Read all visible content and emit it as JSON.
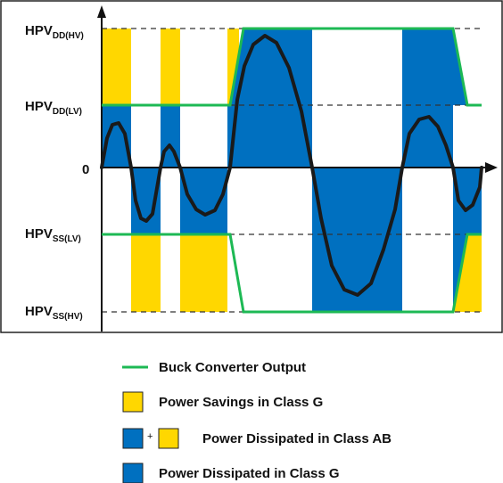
{
  "diagram": {
    "axis_labels": {
      "hpvdd_hv": {
        "main": "HPV",
        "sub": "DD(HV)"
      },
      "hpvdd_lv": {
        "main": "HPV",
        "sub": "DD(LV)"
      },
      "zero": "0",
      "hpvss_lv": {
        "main": "HPV",
        "sub": "SS(LV)"
      },
      "hpvss_hv": {
        "main": "HPV",
        "sub": "SS(HV)"
      }
    },
    "colors": {
      "yellow": "#ffd700",
      "blue": "#0070c0",
      "green": "#1db954",
      "signal": "#1a1a1a"
    }
  },
  "legend": {
    "buck_output": "Buck Converter Output",
    "power_savings": "Power Savings in Class G",
    "plus": "+",
    "class_ab": "Power Dissipated in Class AB",
    "class_g": "Power Dissipated in Class G"
  }
}
